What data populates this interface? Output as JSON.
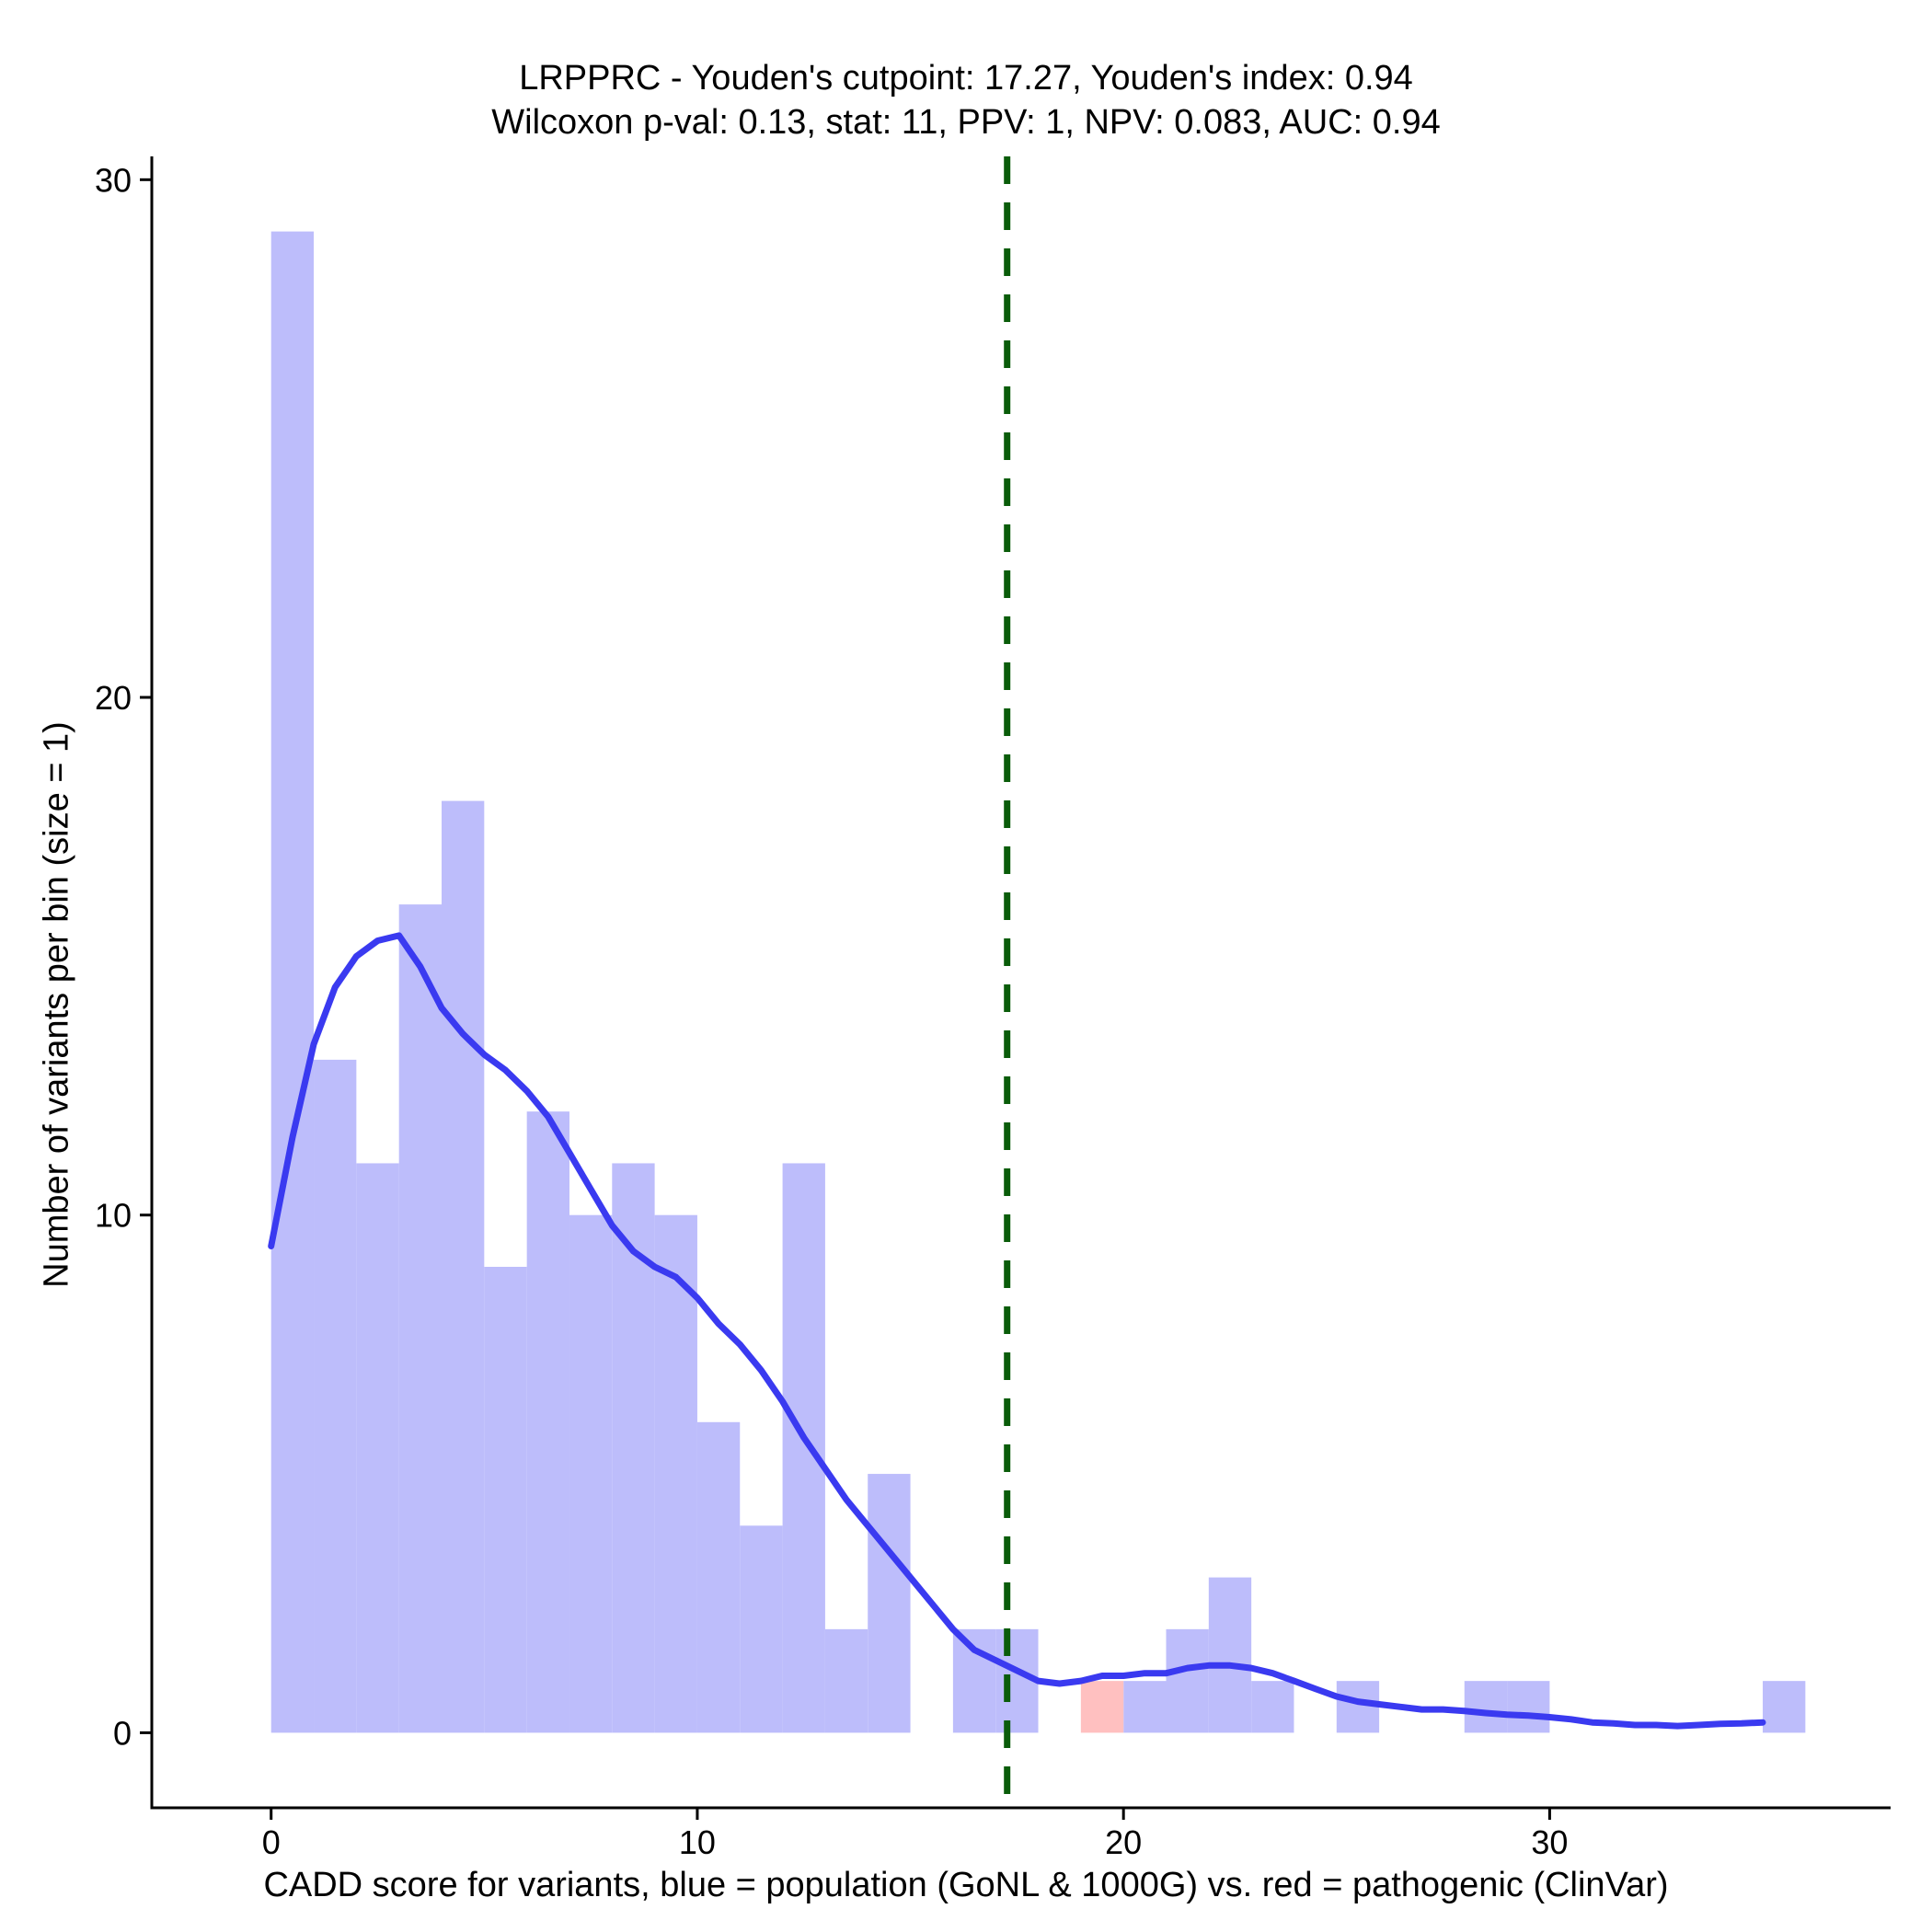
{
  "chart_data": {
    "type": "bar",
    "title": "LRPPRC - Youden's cutpoint: 17.27, Youden's index: 0.94",
    "subtitle": "Wilcoxon p-val: 0.13, stat: 11, PPV: 1, NPV: 0.083, AUC: 0.94",
    "xlabel": "CADD score for variants, blue = population (GoNL & 1000G) vs. red = pathogenic (ClinVar)",
    "ylabel": "Number of variants per bin (size = 1)",
    "xlim": [
      -2.8,
      38.0
    ],
    "ylim": [
      -1.45,
      30.45
    ],
    "x_ticks": [
      0,
      10,
      20,
      30
    ],
    "y_ticks": [
      0,
      10,
      20,
      30
    ],
    "bin_width": 1,
    "series": [
      {
        "color": "#bdbdfb",
        "bins": [
          {
            "x0": 0,
            "count": 29
          },
          {
            "x0": 1,
            "count": 13
          },
          {
            "x0": 2,
            "count": 11
          },
          {
            "x0": 3,
            "count": 16
          },
          {
            "x0": 4,
            "count": 18
          },
          {
            "x0": 5,
            "count": 9
          },
          {
            "x0": 6,
            "count": 12
          },
          {
            "x0": 7,
            "count": 10
          },
          {
            "x0": 8,
            "count": 11
          },
          {
            "x0": 9,
            "count": 10
          },
          {
            "x0": 10,
            "count": 6
          },
          {
            "x0": 11,
            "count": 4
          },
          {
            "x0": 12,
            "count": 11
          },
          {
            "x0": 13,
            "count": 2
          },
          {
            "x0": 14,
            "count": 5
          },
          {
            "x0": 16,
            "count": 2
          },
          {
            "x0": 17,
            "count": 2
          },
          {
            "x0": 20,
            "count": 1
          },
          {
            "x0": 21,
            "count": 2
          },
          {
            "x0": 22,
            "count": 3
          },
          {
            "x0": 23,
            "count": 1
          },
          {
            "x0": 25,
            "count": 1
          },
          {
            "x0": 28,
            "count": 1
          },
          {
            "x0": 29,
            "count": 1
          },
          {
            "x0": 35,
            "count": 1
          }
        ]
      },
      {
        "color": "#ffc0c0",
        "bins": [
          {
            "x0": 19,
            "count": 1
          }
        ]
      }
    ],
    "density_curve": {
      "color": "#3a3af0",
      "points": [
        [
          0,
          9.4
        ],
        [
          0.5,
          11.5
        ],
        [
          1,
          13.3
        ],
        [
          1.5,
          14.4
        ],
        [
          2,
          15.0
        ],
        [
          2.5,
          15.3
        ],
        [
          3,
          15.4
        ],
        [
          3.5,
          14.8
        ],
        [
          4,
          14.0
        ],
        [
          4.5,
          13.5
        ],
        [
          5,
          13.1
        ],
        [
          5.5,
          12.8
        ],
        [
          6,
          12.4
        ],
        [
          6.5,
          11.9
        ],
        [
          7,
          11.2
        ],
        [
          7.5,
          10.5
        ],
        [
          8,
          9.8
        ],
        [
          8.5,
          9.3
        ],
        [
          9,
          9.0
        ],
        [
          9.5,
          8.8
        ],
        [
          10,
          8.4
        ],
        [
          10.5,
          7.9
        ],
        [
          11,
          7.5
        ],
        [
          11.5,
          7.0
        ],
        [
          12,
          6.4
        ],
        [
          12.5,
          5.7
        ],
        [
          13,
          5.1
        ],
        [
          13.5,
          4.5
        ],
        [
          14,
          4.0
        ],
        [
          14.5,
          3.5
        ],
        [
          15,
          3.0
        ],
        [
          15.5,
          2.5
        ],
        [
          16,
          2.0
        ],
        [
          16.5,
          1.6
        ],
        [
          17,
          1.4
        ],
        [
          17.5,
          1.2
        ],
        [
          18,
          1.0
        ],
        [
          18.5,
          0.95
        ],
        [
          19,
          1.0
        ],
        [
          19.5,
          1.1
        ],
        [
          20,
          1.1
        ],
        [
          20.5,
          1.15
        ],
        [
          21,
          1.15
        ],
        [
          21.5,
          1.25
        ],
        [
          22,
          1.3
        ],
        [
          22.5,
          1.3
        ],
        [
          23,
          1.25
        ],
        [
          23.5,
          1.15
        ],
        [
          24,
          1.0
        ],
        [
          24.5,
          0.85
        ],
        [
          25,
          0.7
        ],
        [
          25.5,
          0.6
        ],
        [
          26,
          0.55
        ],
        [
          26.5,
          0.5
        ],
        [
          27,
          0.45
        ],
        [
          27.5,
          0.45
        ],
        [
          28,
          0.42
        ],
        [
          28.5,
          0.38
        ],
        [
          29,
          0.35
        ],
        [
          29.5,
          0.33
        ],
        [
          30,
          0.3
        ],
        [
          30.5,
          0.26
        ],
        [
          31,
          0.2
        ],
        [
          31.5,
          0.18
        ],
        [
          32,
          0.15
        ],
        [
          32.5,
          0.15
        ],
        [
          33,
          0.13
        ],
        [
          33.5,
          0.15
        ],
        [
          34,
          0.17
        ],
        [
          34.5,
          0.18
        ],
        [
          35,
          0.2
        ]
      ]
    },
    "cutpoint": {
      "x": 17.27,
      "color": "#0a5c0a",
      "style": "dashed"
    },
    "grid": false,
    "legend": "none"
  }
}
